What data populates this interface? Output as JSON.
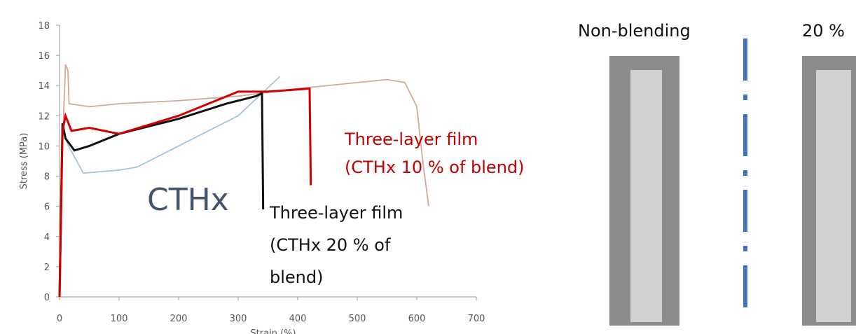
{
  "chart_data": {
    "type": "line",
    "y_label": "Stress (MPa)",
    "x_label": "Strain (%)",
    "xlim": [
      0,
      700
    ],
    "xticks": [
      0,
      100,
      200,
      300,
      400,
      500,
      600,
      700
    ],
    "ylim": [
      0,
      18
    ],
    "yticks": [
      0,
      2,
      4,
      6,
      8,
      10,
      12,
      14,
      16,
      18
    ],
    "series": [
      {
        "color": "#d4a89a",
        "x": [
          0,
          5,
          10,
          14,
          16,
          50,
          100,
          200,
          300,
          400,
          500,
          550,
          580,
          600,
          610,
          620
        ],
        "values": [
          0,
          10,
          15.4,
          15,
          12.8,
          12.6,
          12.8,
          13,
          13.3,
          13.8,
          14.2,
          14.4,
          14.2,
          12.6,
          9,
          6
        ]
      },
      {
        "color": "#a9c4dc",
        "x": [
          0,
          5,
          15,
          40,
          100,
          130,
          200,
          300,
          370
        ],
        "values": [
          0,
          11,
          10,
          8.2,
          8.4,
          8.6,
          10,
          12,
          14.6
        ]
      },
      {
        "color": "#111111",
        "x": [
          0,
          5,
          10,
          25,
          50,
          100,
          200,
          280,
          330,
          340,
          342
        ],
        "values": [
          0,
          11.5,
          10.5,
          9.7,
          10,
          10.8,
          11.8,
          12.8,
          13.3,
          13.5,
          5.8
        ]
      },
      {
        "color": "#d00000",
        "x": [
          0,
          5,
          10,
          20,
          50,
          100,
          200,
          250,
          300,
          350,
          420,
          422
        ],
        "values": [
          0,
          11,
          12,
          11,
          11.2,
          10.8,
          12,
          12.8,
          13.6,
          13.6,
          13.8,
          7.4
        ]
      }
    ],
    "annotations": [
      {
        "lines": [
          "CTHx"
        ],
        "color": "#44546a"
      },
      {
        "lines": [
          "Three-layer film",
          "(CTHx 20 % of",
          "blend)"
        ],
        "color": "#111111"
      },
      {
        "lines": [
          "Three-layer film",
          "(CTHx 10 % of  blend)"
        ],
        "color": "#c00000"
      }
    ]
  },
  "photos": {
    "labels": [
      "Non-blending",
      "20 %"
    ]
  }
}
